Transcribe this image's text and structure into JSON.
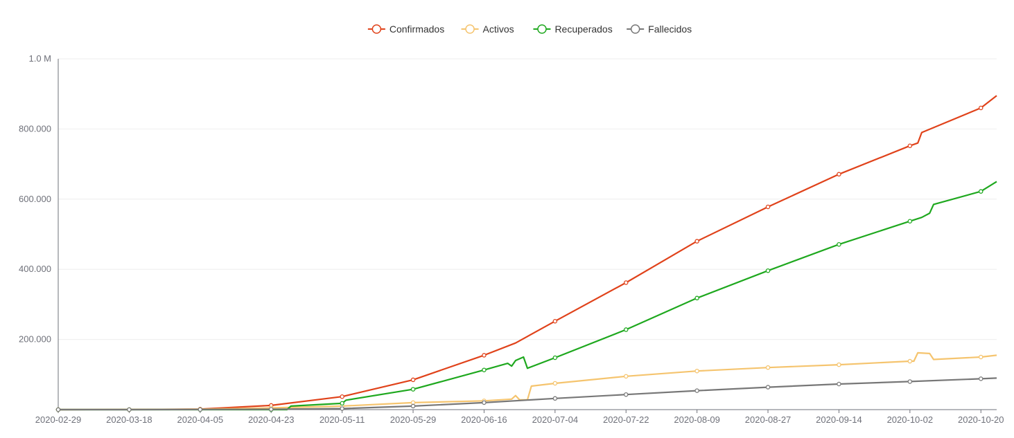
{
  "chart_data": {
    "type": "line",
    "x_axis": {
      "type": "date",
      "start": "2020-02-29",
      "end": "2020-10-24",
      "tick_labels": [
        "2020-02-29",
        "2020-03-18",
        "2020-04-05",
        "2020-04-23",
        "2020-05-11",
        "2020-05-29",
        "2020-06-16",
        "2020-07-04",
        "2020-07-22",
        "2020-08-09",
        "2020-08-27",
        "2020-09-14",
        "2020-10-02",
        "2020-10-20"
      ]
    },
    "y_axis": {
      "ylim": [
        0,
        1000000
      ],
      "ticks": [
        0,
        200000,
        400000,
        600000,
        800000,
        1000000
      ],
      "tick_labels": [
        "",
        "200.000",
        "400.000",
        "600.000",
        "800.000",
        "1.0 M"
      ]
    },
    "grid": "horizontal",
    "legend_position": "top-center",
    "series": [
      {
        "name": "Confirmados",
        "color": "#e0421a",
        "points": [
          [
            "2020-02-29",
            0
          ],
          [
            "2020-03-18",
            100
          ],
          [
            "2020-04-05",
            1500
          ],
          [
            "2020-04-23",
            12000
          ],
          [
            "2020-05-11",
            37000
          ],
          [
            "2020-05-29",
            85000
          ],
          [
            "2020-06-16",
            155000
          ],
          [
            "2020-06-24",
            190000
          ],
          [
            "2020-07-04",
            252000
          ],
          [
            "2020-07-22",
            362000
          ],
          [
            "2020-08-09",
            480000
          ],
          [
            "2020-08-27",
            578000
          ],
          [
            "2020-09-14",
            671000
          ],
          [
            "2020-10-02",
            752000
          ],
          [
            "2020-10-04",
            760000
          ],
          [
            "2020-10-05",
            790000
          ],
          [
            "2020-10-20",
            860000
          ],
          [
            "2020-10-24",
            895000
          ]
        ]
      },
      {
        "name": "Activos",
        "color": "#f5c46e",
        "points": [
          [
            "2020-02-29",
            0
          ],
          [
            "2020-03-18",
            100
          ],
          [
            "2020-04-05",
            1000
          ],
          [
            "2020-04-23",
            5000
          ],
          [
            "2020-05-11",
            10000
          ],
          [
            "2020-05-29",
            20000
          ],
          [
            "2020-06-16",
            25000
          ],
          [
            "2020-06-23",
            30000
          ],
          [
            "2020-06-24",
            40000
          ],
          [
            "2020-06-25",
            28000
          ],
          [
            "2020-06-27",
            28000
          ],
          [
            "2020-06-28",
            67000
          ],
          [
            "2020-07-04",
            75000
          ],
          [
            "2020-07-22",
            95000
          ],
          [
            "2020-08-09",
            110000
          ],
          [
            "2020-08-27",
            120000
          ],
          [
            "2020-09-14",
            128000
          ],
          [
            "2020-10-02",
            138000
          ],
          [
            "2020-10-03",
            138000
          ],
          [
            "2020-10-04",
            162000
          ],
          [
            "2020-10-07",
            160000
          ],
          [
            "2020-10-08",
            143000
          ],
          [
            "2020-10-20",
            150000
          ],
          [
            "2020-10-24",
            155000
          ]
        ]
      },
      {
        "name": "Recuperados",
        "color": "#1ea81e",
        "points": [
          [
            "2020-02-29",
            0
          ],
          [
            "2020-03-18",
            0
          ],
          [
            "2020-04-05",
            0
          ],
          [
            "2020-04-23",
            0
          ],
          [
            "2020-04-27",
            0
          ],
          [
            "2020-04-28",
            10000
          ],
          [
            "2020-05-11",
            18000
          ],
          [
            "2020-05-12",
            27000
          ],
          [
            "2020-05-29",
            58000
          ],
          [
            "2020-06-16",
            113000
          ],
          [
            "2020-06-22",
            132000
          ],
          [
            "2020-06-23",
            124000
          ],
          [
            "2020-06-24",
            140000
          ],
          [
            "2020-06-26",
            150000
          ],
          [
            "2020-06-27",
            118000
          ],
          [
            "2020-07-04",
            148000
          ],
          [
            "2020-07-22",
            228000
          ],
          [
            "2020-08-09",
            318000
          ],
          [
            "2020-08-27",
            396000
          ],
          [
            "2020-09-14",
            471000
          ],
          [
            "2020-10-02",
            537000
          ],
          [
            "2020-10-05",
            548000
          ],
          [
            "2020-10-07",
            560000
          ],
          [
            "2020-10-08",
            585000
          ],
          [
            "2020-10-20",
            622000
          ],
          [
            "2020-10-24",
            650000
          ]
        ]
      },
      {
        "name": "Fallecidos",
        "color": "#777777",
        "points": [
          [
            "2020-02-29",
            0
          ],
          [
            "2020-03-18",
            0
          ],
          [
            "2020-04-05",
            300
          ],
          [
            "2020-04-23",
            1000
          ],
          [
            "2020-05-11",
            3000
          ],
          [
            "2020-05-29",
            10000
          ],
          [
            "2020-06-16",
            20000
          ],
          [
            "2020-07-04",
            32000
          ],
          [
            "2020-07-22",
            43000
          ],
          [
            "2020-08-09",
            54000
          ],
          [
            "2020-08-27",
            64000
          ],
          [
            "2020-09-14",
            73000
          ],
          [
            "2020-10-02",
            80000
          ],
          [
            "2020-10-20",
            88000
          ],
          [
            "2020-10-24",
            90000
          ]
        ]
      }
    ]
  }
}
